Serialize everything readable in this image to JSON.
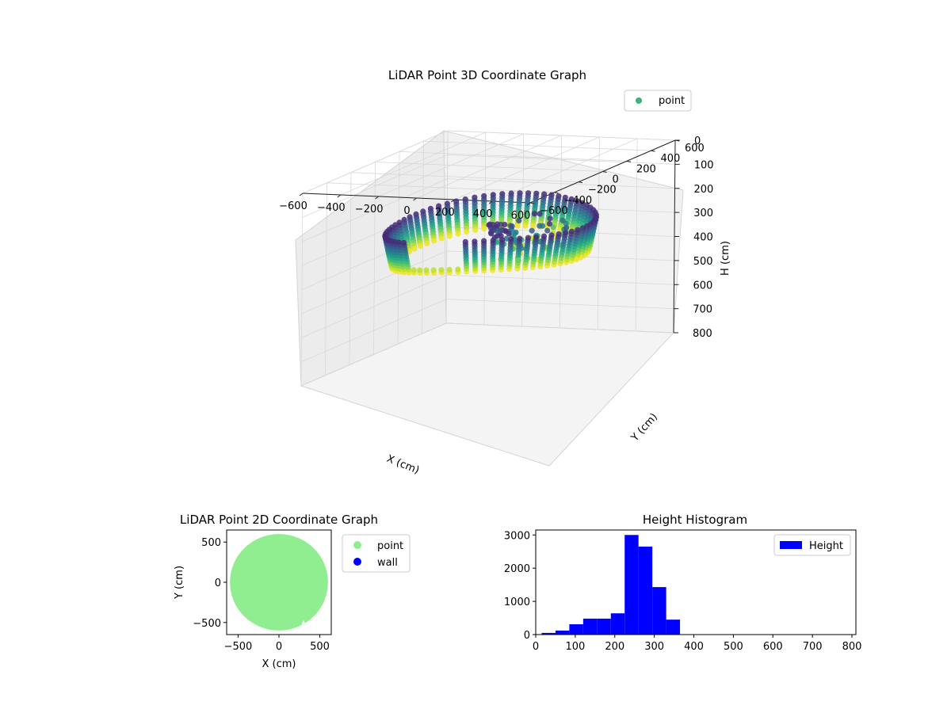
{
  "chart_data": [
    {
      "type": "scatter",
      "subtype": "scatter3d",
      "title": "LiDAR Point 3D Coordinate Graph",
      "xlabel": "X (cm)",
      "ylabel": "Y (cm)",
      "zlabel": "H (cm)",
      "xlim": [
        -600,
        600
      ],
      "ylim": [
        -600,
        600
      ],
      "zlim": [
        0,
        800
      ],
      "z_inverted": true,
      "x_ticks": [
        "−600",
        "−400",
        "−200",
        "0",
        "200",
        "400",
        "600"
      ],
      "y_ticks": [
        "−600",
        "−400",
        "−200",
        "0",
        "200",
        "400",
        "600"
      ],
      "z_ticks": [
        "0",
        "100",
        "200",
        "300",
        "400",
        "500",
        "600",
        "700",
        "800"
      ],
      "legend": [
        "point"
      ],
      "legend_position": "top-right",
      "colormap": "viridis",
      "structure": {
        "ring_radius": 470,
        "ring_height_range": [
          230,
          360
        ],
        "wall_columns": 72,
        "points_per_column": 12,
        "inner_points_height_range": [
          230,
          340
        ]
      },
      "colors": {
        "legend_marker": "#3bb47a"
      },
      "grid": true
    },
    {
      "type": "scatter",
      "title": "LiDAR Point 2D Coordinate Graph",
      "xlabel": "X (cm)",
      "ylabel": "Y (cm)",
      "xlim": [
        -640,
        640
      ],
      "ylim": [
        -650,
        650
      ],
      "x_ticks": [
        -500,
        0,
        500
      ],
      "y_ticks": [
        -500,
        0,
        500
      ],
      "series": [
        {
          "name": "point",
          "color": "#90ee90",
          "shape": "filled disk, radius 600, centre (0,0), small notch at bottom-right"
        },
        {
          "name": "wall",
          "color": "#0000ff",
          "points": []
        }
      ],
      "legend_position": "outside-right"
    },
    {
      "type": "bar",
      "subtype": "histogram",
      "title": "Height Histogram",
      "xlim": [
        0,
        810
      ],
      "ylim": [
        0,
        3150
      ],
      "x_ticks": [
        0,
        100,
        200,
        300,
        400,
        500,
        600,
        700,
        800
      ],
      "y_ticks": [
        0,
        1000,
        2000,
        3000
      ],
      "bin_edges": [
        15,
        50,
        85,
        120,
        155,
        190,
        225,
        260,
        295,
        330,
        365
      ],
      "counts": [
        50,
        120,
        310,
        480,
        480,
        640,
        3000,
        2650,
        1430,
        450
      ],
      "series": [
        {
          "name": "Height",
          "color": "#0000ff"
        }
      ],
      "legend_position": "top-right"
    }
  ]
}
